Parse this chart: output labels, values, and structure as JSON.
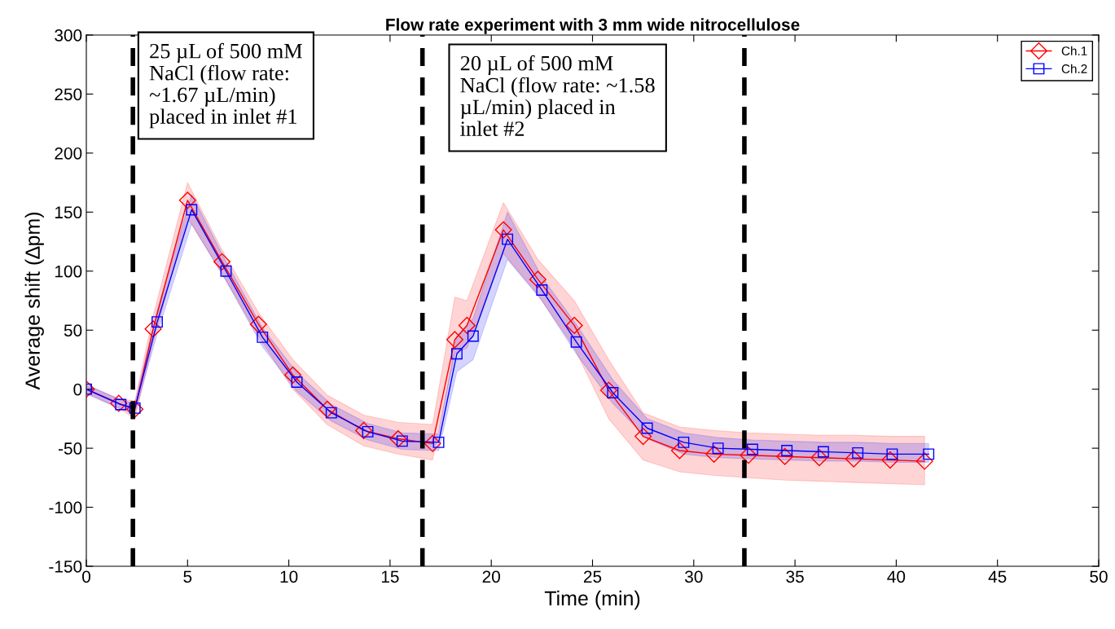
{
  "chart_data": {
    "type": "line",
    "title": "Flow rate experiment with 3 mm wide nitrocellulose",
    "xlabel": "Time (min)",
    "ylabel": "Average shift (∆pm)",
    "xlim": [
      0,
      50
    ],
    "xticks": [
      0,
      5,
      10,
      15,
      20,
      25,
      30,
      35,
      40,
      45,
      50
    ],
    "ylim": [
      -150,
      300
    ],
    "yticks": [
      -150,
      -100,
      -50,
      0,
      50,
      100,
      150,
      200,
      250,
      300
    ],
    "grid": false,
    "legend": "top right",
    "line_style": "solid",
    "series": [
      {
        "name": "Ch.1",
        "color": "#ff0000",
        "marker": "diamond",
        "x": [
          0,
          1.6,
          2.4,
          3.3,
          5.0,
          6.7,
          8.5,
          10.2,
          11.9,
          13.7,
          15.4,
          17.1,
          18.2,
          18.8,
          20.6,
          22.3,
          24.1,
          25.8,
          27.5,
          29.3,
          31.0,
          32.7,
          34.5,
          36.2,
          37.9,
          39.7,
          41.4
        ],
        "values": [
          0,
          -12,
          -17,
          51,
          160,
          108,
          55,
          12,
          -17,
          -35,
          -42,
          -46,
          42,
          54,
          135,
          93,
          54,
          -1,
          -40,
          -52,
          -55,
          -56,
          -57,
          -58,
          -59,
          -60,
          -61
        ],
        "lower": [
          -3,
          -16,
          -25,
          40,
          145,
          98,
          45,
          0,
          -30,
          -48,
          -55,
          -60,
          30,
          35,
          115,
          80,
          35,
          -25,
          -60,
          -70,
          -73,
          -75,
          -77,
          -78,
          -79,
          -80,
          -81
        ],
        "upper": [
          3,
          -8,
          -10,
          62,
          175,
          118,
          65,
          25,
          -5,
          -22,
          -28,
          -30,
          78,
          75,
          158,
          110,
          75,
          25,
          -20,
          -32,
          -35,
          -37,
          -38,
          -39,
          -39,
          -40,
          -40
        ]
      },
      {
        "name": "Ch.2",
        "color": "#0000ff",
        "marker": "square",
        "x": [
          0,
          1.7,
          2.4,
          3.5,
          5.2,
          6.9,
          8.7,
          10.4,
          12.1,
          13.9,
          15.6,
          17.4,
          18.3,
          19.1,
          20.8,
          22.5,
          24.2,
          26.0,
          27.7,
          29.5,
          31.2,
          32.9,
          34.6,
          36.4,
          38.1,
          39.8,
          41.6
        ],
        "values": [
          0,
          -13,
          -16,
          57,
          152,
          100,
          44,
          6,
          -20,
          -36,
          -44,
          -45,
          30,
          45,
          127,
          84,
          40,
          -3,
          -33,
          -45,
          -50,
          -51,
          -52,
          -53,
          -54,
          -55,
          -55
        ],
        "lower": [
          -4,
          -17,
          -20,
          47,
          140,
          92,
          36,
          -2,
          -27,
          -43,
          -51,
          -52,
          15,
          25,
          110,
          75,
          30,
          -12,
          -42,
          -55,
          -58,
          -59,
          -60,
          -61,
          -61,
          -62,
          -62
        ],
        "upper": [
          4,
          -9,
          -12,
          67,
          165,
          108,
          52,
          14,
          -13,
          -29,
          -37,
          -38,
          45,
          60,
          150,
          95,
          55,
          8,
          -25,
          -37,
          -41,
          -43,
          -44,
          -45,
          -45,
          -46,
          -46
        ]
      }
    ],
    "ref_lines": [
      {
        "axis": "x",
        "value": 2.3,
        "color": "#000000",
        "line_style": "dashed"
      },
      {
        "axis": "x",
        "value": 16.6,
        "color": "#000000",
        "line_style": "dashed"
      },
      {
        "axis": "x",
        "value": 32.5,
        "color": "#000000",
        "line_style": "dashed"
      }
    ],
    "annotations": [
      "25 µL of 500 mM\nNaCl (flow rate:\n~1.67 µL/min)\nplaced in inlet #1",
      "20 µL of 500 mM\nNaCl (flow rate: ~1.58\nµL/min) placed in\ninlet #2"
    ]
  }
}
